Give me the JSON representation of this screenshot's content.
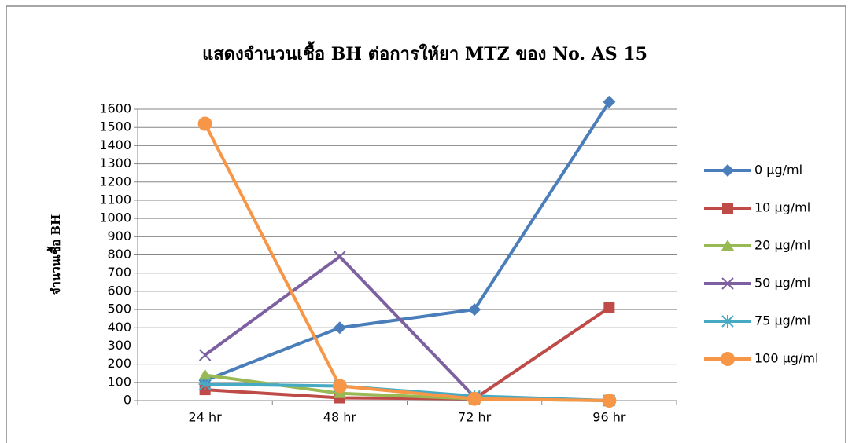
{
  "chart_data": {
    "type": "line",
    "title": "แสดงจำนวนเชื้อ BH ต่อการให้ยา MTZ ของ No. AS 15",
    "y_label": "จำนวนเชื้อ BH",
    "categories": [
      "24 hr",
      "48 hr",
      "72 hr",
      "96 hr"
    ],
    "series": [
      {
        "name": "0 µg/ml",
        "color": "#4a7ebb",
        "marker": "diamond",
        "values": [
          110,
          400,
          500,
          1640
        ]
      },
      {
        "name": "10 µg/ml",
        "color": "#be4b48",
        "marker": "square",
        "values": [
          60,
          15,
          10,
          510
        ]
      },
      {
        "name": "20 µg/ml",
        "color": "#98b954",
        "marker": "triangle",
        "values": [
          140,
          40,
          10,
          0
        ]
      },
      {
        "name": "50 µg/ml",
        "color": "#7d60a0",
        "marker": "x",
        "values": [
          250,
          790,
          20,
          0
        ]
      },
      {
        "name": "75 µg/ml",
        "color": "#46aac5",
        "marker": "star",
        "values": [
          90,
          80,
          25,
          0
        ]
      },
      {
        "name": "100 µg/ml",
        "color": "#f79646",
        "marker": "circle",
        "values": [
          1520,
          80,
          10,
          0
        ]
      }
    ],
    "ylim": [
      0,
      1600
    ],
    "yticks": [
      0,
      100,
      200,
      300,
      400,
      500,
      600,
      700,
      800,
      900,
      1000,
      1100,
      1200,
      1300,
      1400,
      1500,
      1600
    ],
    "grid": true,
    "legend": "right"
  }
}
